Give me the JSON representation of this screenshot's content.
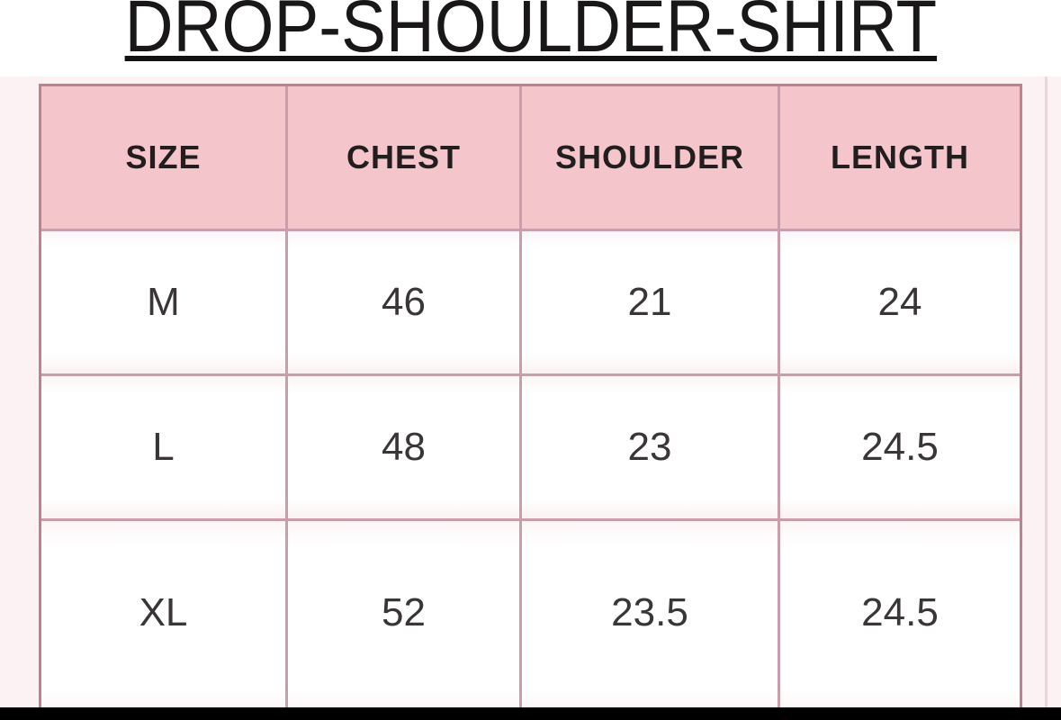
{
  "page": {
    "title": "DROP-SHOULDER-SHIRT"
  },
  "chart_data": {
    "type": "table",
    "title": "DROP-SHOULDER-SHIRT",
    "columns": [
      "SIZE",
      "CHEST",
      "SHOULDER",
      "LENGTH"
    ],
    "rows": [
      [
        "M",
        "46",
        "21",
        "24"
      ],
      [
        "L",
        "48",
        "23",
        "24.5"
      ],
      [
        "XL",
        "52",
        "23.5",
        "24.5"
      ]
    ]
  },
  "colors": {
    "header_bg": "#f4c5cb",
    "cell_bg": "#ffffff",
    "inner_grid_line": "#c99daa",
    "outer_border": "#bb8390",
    "title_text": "#1a1718",
    "header_text": "#221e1f",
    "cell_text": "#3a3637",
    "page_tint": "#fcf2f4",
    "bottom_bar": "#000000"
  }
}
